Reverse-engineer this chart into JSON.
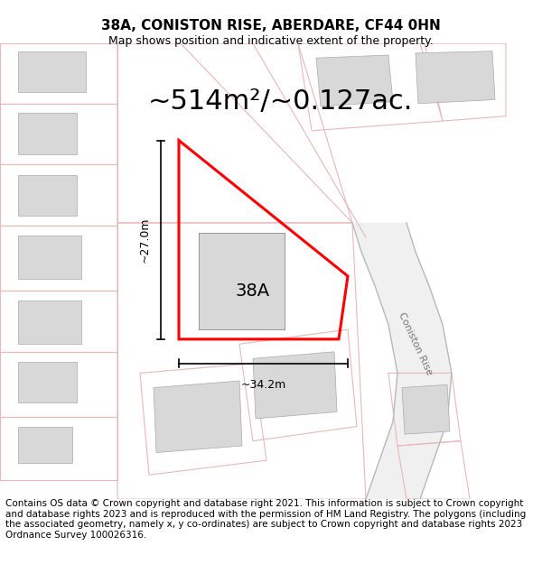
{
  "title": "38A, CONISTON RISE, ABERDARE, CF44 0HN",
  "subtitle": "Map shows position and indicative extent of the property.",
  "area_text": "~514m²/~0.127ac.",
  "label_38A": "38A",
  "dim_height": "~27.0m",
  "dim_width": "~34.2m",
  "road_label": "Coniston Rise",
  "footer": "Contains OS data © Crown copyright and database right 2021. This information is subject to Crown copyright and database rights 2023 and is reproduced with the permission of HM Land Registry. The polygons (including the associated geometry, namely x, y co-ordinates) are subject to Crown copyright and database rights 2023 Ordnance Survey 100026316.",
  "bg_color": "#ffffff",
  "map_bg": "#ffffff",
  "highlight_color": "#ff0000",
  "building_color": "#d8d8d8",
  "plot_outline": "#e8b8b8",
  "title_fontsize": 11,
  "subtitle_fontsize": 9,
  "area_fontsize": 22,
  "footer_fontsize": 7.5,
  "road_color": "#aaaaaa",
  "road_fill": "#f0f0f0"
}
